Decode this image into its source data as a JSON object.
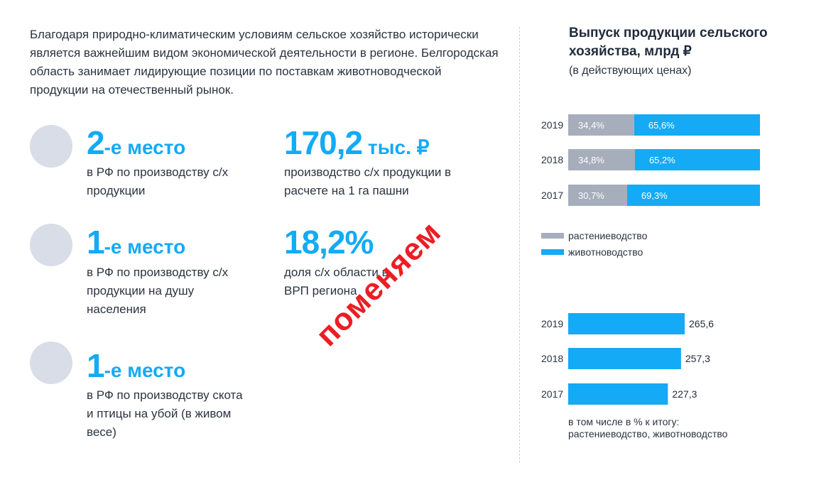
{
  "intro_text": "Благодаря природно-климатическим условиям сельское хозяйство исторически является важнейшим видом экономической деятельности в регионе. Белгородская область занимает лидирующие позиции по поставкам животноводческой продукции на отечественный рынок.",
  "stats": [
    {
      "big": "2",
      "suffix": "-е место",
      "desc": "в РФ по производству с/х продукции"
    },
    {
      "big": "170,2",
      "suffix": " тыс. ₽",
      "desc": "производство с/х продукции в расчете на 1 га пашни"
    },
    {
      "big": "1",
      "suffix": "-е место",
      "desc": "в РФ по производству с/х продукции на душу населения"
    },
    {
      "big": "18,2%",
      "suffix": "",
      "desc": "доля с/х области в ВРП региона"
    },
    {
      "big": "1",
      "suffix": "-е место",
      "desc": "в РФ по производству скота и птицы на убой (в живом весе)"
    }
  ],
  "stamp_text": "поменяем",
  "colors": {
    "accent": "#14aaf5",
    "gray": "#a6adbb",
    "circle": "#d8dde7",
    "stamp": "#ec1d24"
  },
  "chart_title": "Выпуск продукции сельского хозяйства, млрд ₽",
  "chart_subtitle": "(в действующих ценах)",
  "chart_data": [
    {
      "type": "bar",
      "stacked": true,
      "orientation": "horizontal",
      "categories": [
        "2019",
        "2018",
        "2017"
      ],
      "series": [
        {
          "name": "растениеводство",
          "values": [
            34.4,
            34.8,
            30.7
          ],
          "labels": [
            "34,4%",
            "34,8%",
            "30,7%"
          ],
          "color": "#a6adbb"
        },
        {
          "name": "животноводство",
          "values": [
            65.6,
            65.2,
            69.3
          ],
          "labels": [
            "65,6%",
            "65,2%",
            "69,3%"
          ],
          "color": "#14aaf5"
        }
      ],
      "xlim": [
        0,
        100
      ],
      "legend": "bottom"
    },
    {
      "type": "bar",
      "orientation": "horizontal",
      "categories": [
        "2019",
        "2018",
        "2017"
      ],
      "values": [
        265.6,
        257.3,
        227.3
      ],
      "labels": [
        "265,6",
        "257,3",
        "227,3"
      ],
      "xlim": [
        0,
        300
      ],
      "note": "в том числе в % к итогу: растениеводство, животноводство"
    }
  ]
}
